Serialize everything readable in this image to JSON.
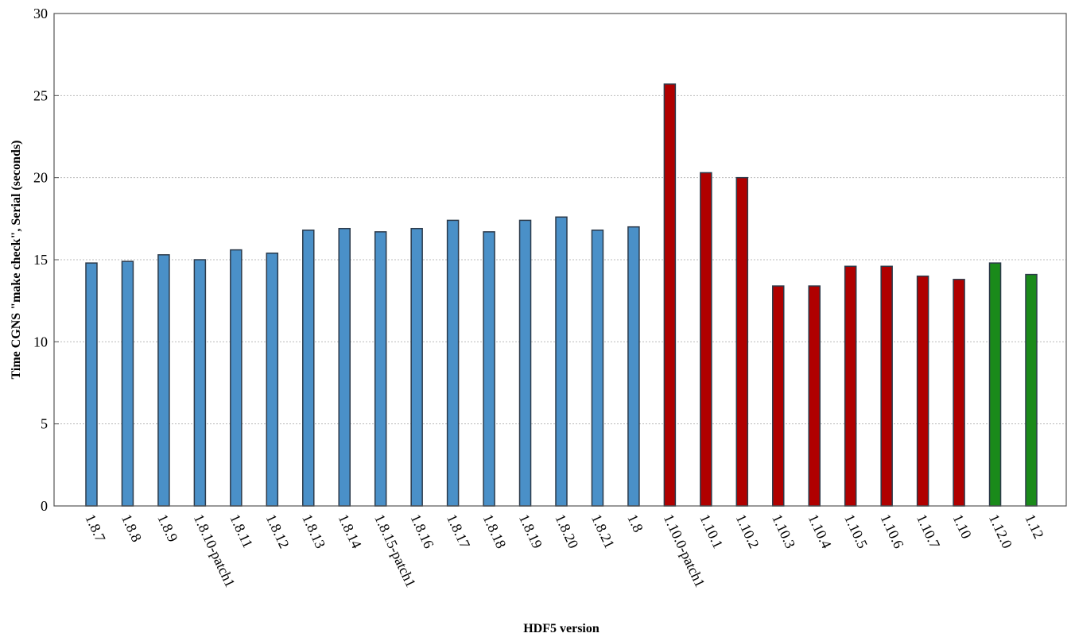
{
  "chart_data": {
    "type": "bar",
    "title": "",
    "xlabel": "HDF5 version",
    "ylabel": "Time CGNS \"make check\", Serial (seconds)",
    "ylim": [
      0,
      30
    ],
    "yticks": [
      0,
      5,
      10,
      15,
      20,
      25,
      30
    ],
    "grid": "horizontal-dashed",
    "categories": [
      "1.8.7",
      "1.8.8",
      "1.8.9",
      "1.8.10-patch1",
      "1.8.11",
      "1.8.12",
      "1.8.13",
      "1.8.14",
      "1.8.15-patch1",
      "1.8.16",
      "1.8.17",
      "1.8.18",
      "1.8.19",
      "1.8.20",
      "1.8.21",
      "1.8",
      "1.10.0-patch1",
      "1.10.1",
      "1.10.2",
      "1.10.3",
      "1.10.4",
      "1.10.5",
      "1.10.6",
      "1.10.7",
      "1.10",
      "1.12.0",
      "1.12"
    ],
    "values": [
      14.8,
      14.9,
      15.3,
      15.0,
      15.6,
      15.4,
      16.8,
      16.9,
      16.7,
      16.9,
      17.4,
      16.7,
      17.4,
      17.6,
      16.8,
      17.0,
      25.7,
      20.3,
      20.0,
      13.4,
      13.4,
      14.6,
      14.6,
      14.0,
      13.8,
      14.8,
      14.1
    ],
    "colors": [
      "#4a90c8",
      "#4a90c8",
      "#4a90c8",
      "#4a90c8",
      "#4a90c8",
      "#4a90c8",
      "#4a90c8",
      "#4a90c8",
      "#4a90c8",
      "#4a90c8",
      "#4a90c8",
      "#4a90c8",
      "#4a90c8",
      "#4a90c8",
      "#4a90c8",
      "#4a90c8",
      "#b00000",
      "#b00000",
      "#b00000",
      "#b00000",
      "#b00000",
      "#b00000",
      "#b00000",
      "#b00000",
      "#b00000",
      "#1a8a1a",
      "#1a8a1a"
    ],
    "bar_edge_color": "#2c3a4a"
  }
}
